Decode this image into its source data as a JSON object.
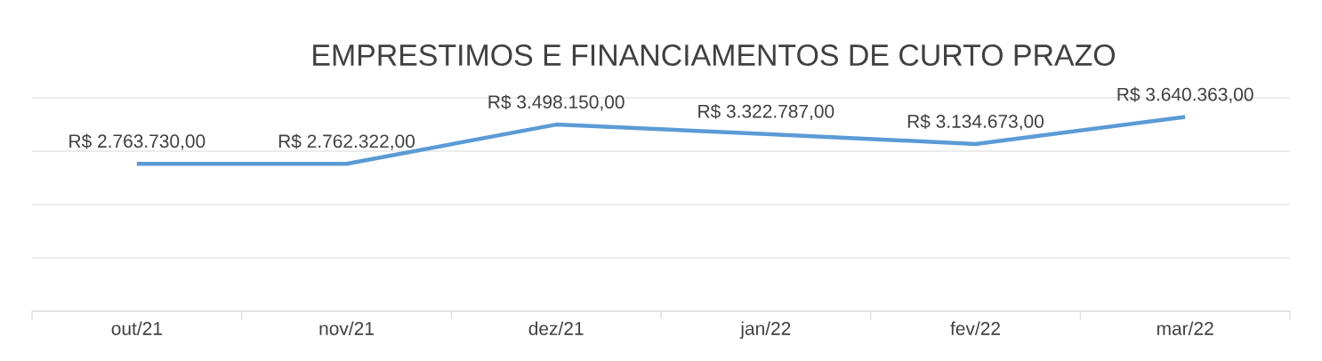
{
  "chart_data": {
    "type": "line",
    "title": "EMPRESTIMOS E FINANCIAMENTOS DE CURTO PRAZO",
    "categories": [
      "out/21",
      "nov/21",
      "dez/21",
      "jan/22",
      "fev/22",
      "mar/22"
    ],
    "series": [
      {
        "color": "#5b9bd5",
        "values": [
          2763730,
          2762322,
          3498150,
          3322787,
          3134673,
          3640363
        ],
        "value_labels": [
          "R$ 2.763.730,00",
          "R$ 2.762.322,00",
          "R$ 3.498.150,00",
          "R$ 3.322.787,00",
          "R$ 3.134.673,00",
          "R$ 3.640.363,00"
        ]
      }
    ],
    "ylim": [
      0,
      4000000
    ],
    "yticks": [
      {
        "value": 0,
        "label": null
      },
      {
        "value": 1000000,
        "label": null
      },
      {
        "value": 2000000,
        "label": null
      },
      {
        "value": 3000000,
        "label": null
      },
      {
        "value": 4000000,
        "label": null
      }
    ],
    "grid": "y",
    "tick_labels": "x",
    "marker": "none",
    "line_style": "solid"
  }
}
